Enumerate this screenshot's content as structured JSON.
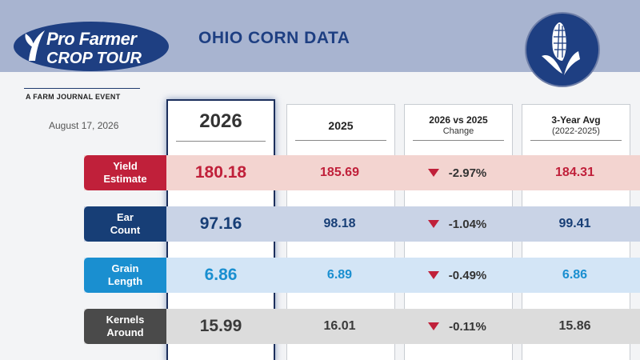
{
  "header": {
    "logo_line1": "Pro Farmer",
    "logo_line2": "CROP TOUR",
    "tagline": "A FARM JOURNAL EVENT",
    "title": "OHIO CORN DATA",
    "date": "August 17, 2026"
  },
  "columns": [
    {
      "label": "2026",
      "sub": ""
    },
    {
      "label": "2025",
      "sub": ""
    },
    {
      "label": "2026 vs 2025",
      "sub": "Change"
    },
    {
      "label": "3-Year Avg",
      "sub": "(2022-2025)"
    }
  ],
  "rows": [
    {
      "label1": "Yield",
      "label2": "Estimate",
      "v2026": "180.18",
      "v2025": "185.69",
      "change": "-2.97%",
      "avg": "184.31",
      "label_color": "#c0203a",
      "band_color": "#f3d4d0",
      "text_color": "#c0203a"
    },
    {
      "label1": "Ear",
      "label2": "Count",
      "v2026": "97.16",
      "v2025": "98.18",
      "change": "-1.04%",
      "avg": "99.41",
      "label_color": "#173e76",
      "band_color": "#c9d3e6",
      "text_color": "#173e76"
    },
    {
      "label1": "Grain",
      "label2": "Length",
      "v2026": "6.86",
      "v2025": "6.89",
      "change": "-0.49%",
      "avg": "6.86",
      "label_color": "#1a8fd0",
      "band_color": "#d3e5f6",
      "text_color": "#1a8fd0"
    },
    {
      "label1": "Kernels",
      "label2": "Around",
      "v2026": "15.99",
      "v2025": "16.01",
      "change": "-0.11%",
      "avg": "15.86",
      "label_color": "#4a4a4a",
      "band_color": "#dcdcdc",
      "text_color": "#3a3a3a"
    }
  ],
  "colors": {
    "header_band": "#a8b4d0",
    "navy": "#1e3f82",
    "down_arrow": "#c0203a"
  }
}
